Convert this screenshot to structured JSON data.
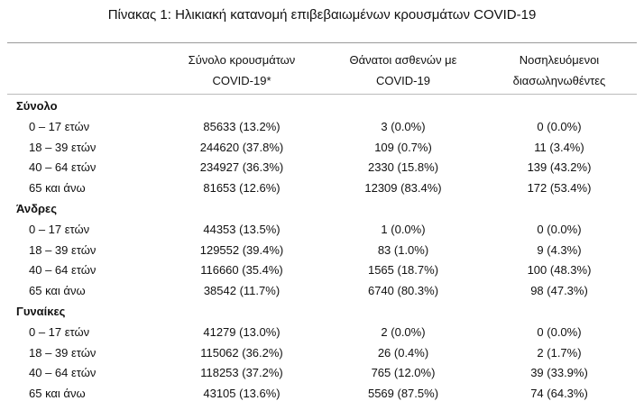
{
  "title": "Πίνακας 1: Ηλικιακή κατανομή επιβεβαιωμένων κρουσμάτων COVID-19",
  "table": {
    "columns": [
      [
        "Σύνολο κρουσμάτων",
        "COVID-19*"
      ],
      [
        "Θάνατοι ασθενών με",
        "COVID-19"
      ],
      [
        "Νοσηλευόμενοι",
        "διασωληνωθέντες"
      ]
    ],
    "groups": [
      {
        "label": "Σύνολο",
        "rows": [
          {
            "label": "0 – 17 ετών",
            "cells": [
              "85633 (13.2%)",
              "3 (0.0%)",
              "0 (0.0%)"
            ]
          },
          {
            "label": "18 – 39 ετών",
            "cells": [
              "244620 (37.8%)",
              "109 (0.7%)",
              "11 (3.4%)"
            ]
          },
          {
            "label": "40 – 64 ετών",
            "cells": [
              "234927 (36.3%)",
              "2330 (15.8%)",
              "139 (43.2%)"
            ]
          },
          {
            "label": "65 και άνω",
            "cells": [
              "81653 (12.6%)",
              "12309 (83.4%)",
              "172 (53.4%)"
            ]
          }
        ]
      },
      {
        "label": "Άνδρες",
        "rows": [
          {
            "label": "0 – 17 ετών",
            "cells": [
              "44353 (13.5%)",
              "1 (0.0%)",
              "0 (0.0%)"
            ]
          },
          {
            "label": "18 – 39 ετών",
            "cells": [
              "129552 (39.4%)",
              "83 (1.0%)",
              "9 (4.3%)"
            ]
          },
          {
            "label": "40 – 64 ετών",
            "cells": [
              "116660 (35.4%)",
              "1565 (18.7%)",
              "100 (48.3%)"
            ]
          },
          {
            "label": "65 και άνω",
            "cells": [
              "38542 (11.7%)",
              "6740 (80.3%)",
              "98 (47.3%)"
            ]
          }
        ]
      },
      {
        "label": "Γυναίκες",
        "rows": [
          {
            "label": "0 – 17 ετών",
            "cells": [
              "41279 (13.0%)",
              "2 (0.0%)",
              "0 (0.0%)"
            ]
          },
          {
            "label": "18 – 39 ετών",
            "cells": [
              "115062 (36.2%)",
              "26 (0.4%)",
              "2 (1.7%)"
            ]
          },
          {
            "label": "40 – 64 ετών",
            "cells": [
              "118253 (37.2%)",
              "765 (12.0%)",
              "39 (33.9%)"
            ]
          },
          {
            "label": "65 και άνω",
            "cells": [
              "43105 (13.6%)",
              "5569 (87.5%)",
              "74 (64.3%)"
            ]
          }
        ]
      }
    ]
  }
}
